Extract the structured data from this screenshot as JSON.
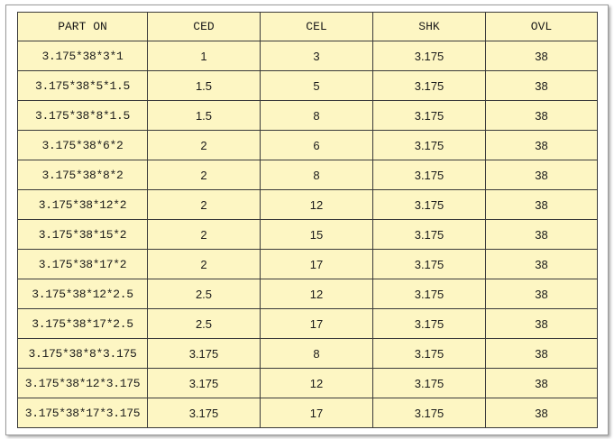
{
  "table": {
    "header": [
      "PART ON",
      "CED",
      "CEL",
      "SHK",
      "OVL"
    ],
    "rows": [
      [
        "3.175*38*3*1",
        "1",
        "3",
        "3.175",
        "38"
      ],
      [
        "3.175*38*5*1.5",
        "1.5",
        "5",
        "3.175",
        "38"
      ],
      [
        "3.175*38*8*1.5",
        "1.5",
        "8",
        "3.175",
        "38"
      ],
      [
        "3.175*38*6*2",
        "2",
        "6",
        "3.175",
        "38"
      ],
      [
        "3.175*38*8*2",
        "2",
        "8",
        "3.175",
        "38"
      ],
      [
        "3.175*38*12*2",
        "2",
        "12",
        "3.175",
        "38"
      ],
      [
        "3.175*38*15*2",
        "2",
        "15",
        "3.175",
        "38"
      ],
      [
        "3.175*38*17*2",
        "2",
        "17",
        "3.175",
        "38"
      ],
      [
        "3.175*38*12*2.5",
        "2.5",
        "12",
        "3.175",
        "38"
      ],
      [
        "3.175*38*17*2.5",
        "2.5",
        "17",
        "3.175",
        "38"
      ],
      [
        "3.175*38*8*3.175",
        "3.175",
        "8",
        "3.175",
        "38"
      ],
      [
        "3.175*38*12*3.175",
        "3.175",
        "12",
        "3.175",
        "38"
      ],
      [
        "3.175*38*17*3.175",
        "3.175",
        "17",
        "3.175",
        "38"
      ]
    ]
  }
}
